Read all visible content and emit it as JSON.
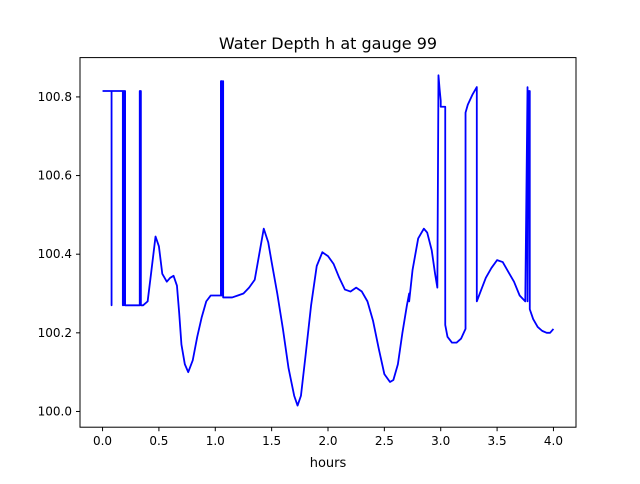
{
  "chart_data": {
    "type": "line",
    "title": "Water Depth h at gauge 99",
    "xlabel": "hours",
    "ylabel": "",
    "xlim": [
      -0.2,
      4.2
    ],
    "ylim": [
      99.96,
      100.9
    ],
    "xticks": [
      0.0,
      0.5,
      1.0,
      1.5,
      2.0,
      2.5,
      3.0,
      3.5,
      4.0
    ],
    "xtick_labels": [
      "0.0",
      "0.5",
      "1.0",
      "1.5",
      "2.0",
      "2.5",
      "3.0",
      "3.5",
      "4.0"
    ],
    "yticks": [
      100.0,
      100.2,
      100.4,
      100.6,
      100.8
    ],
    "ytick_labels": [
      "100.0",
      "100.2",
      "100.4",
      "100.6",
      "100.8"
    ],
    "grid": false,
    "legend": "none",
    "colors": {
      "line": "#0000ff",
      "frame": "#000000",
      "background": "#ffffff"
    },
    "series": [
      {
        "x": [
          0.0,
          0.06,
          0.08,
          0.08,
          0.08,
          0.08,
          0.08,
          0.08,
          0.1,
          0.16,
          0.18,
          0.18,
          0.18,
          0.19,
          0.19,
          0.19,
          0.2,
          0.2,
          0.2,
          0.22,
          0.3,
          0.33,
          0.33,
          0.34,
          0.34,
          0.36,
          0.4,
          0.43,
          0.47,
          0.5,
          0.53,
          0.57,
          0.6,
          0.63,
          0.66,
          0.68,
          0.7,
          0.73,
          0.76,
          0.8,
          0.84,
          0.88,
          0.92,
          0.96,
          1.0,
          1.03,
          1.05,
          1.05,
          1.06,
          1.06,
          1.07,
          1.07,
          1.1,
          1.15,
          1.2,
          1.25,
          1.3,
          1.35,
          1.39,
          1.43,
          1.47,
          1.5,
          1.55,
          1.6,
          1.65,
          1.7,
          1.73,
          1.76,
          1.8,
          1.85,
          1.9,
          1.95,
          2.0,
          2.05,
          2.1,
          2.15,
          2.2,
          2.25,
          2.3,
          2.35,
          2.4,
          2.45,
          2.5,
          2.55,
          2.58,
          2.62,
          2.66,
          2.7,
          2.72,
          2.72,
          2.75,
          2.8,
          2.85,
          2.88,
          2.92,
          2.95,
          2.97,
          2.98,
          2.99,
          3.0,
          3.0,
          3.02,
          3.04,
          3.04,
          3.06,
          3.1,
          3.14,
          3.18,
          3.22,
          3.22,
          3.24,
          3.28,
          3.32,
          3.32,
          3.36,
          3.4,
          3.45,
          3.5,
          3.55,
          3.6,
          3.65,
          3.7,
          3.75,
          3.77,
          3.77,
          3.78,
          3.79,
          3.79,
          3.82,
          3.86,
          3.9,
          3.94,
          3.97,
          4.0
        ],
        "y": [
          100.815,
          100.815,
          100.815,
          100.27,
          100.815,
          100.815,
          100.27,
          100.815,
          100.815,
          100.815,
          100.815,
          100.27,
          100.815,
          100.815,
          100.27,
          100.815,
          100.815,
          100.27,
          100.27,
          100.27,
          100.27,
          100.27,
          100.815,
          100.815,
          100.27,
          100.27,
          100.28,
          100.35,
          100.445,
          100.42,
          100.35,
          100.33,
          100.34,
          100.345,
          100.32,
          100.25,
          100.17,
          100.12,
          100.1,
          100.13,
          100.19,
          100.24,
          100.28,
          100.295,
          100.295,
          100.295,
          100.295,
          100.84,
          100.84,
          100.295,
          100.84,
          100.29,
          100.29,
          100.29,
          100.295,
          100.3,
          100.315,
          100.335,
          100.4,
          100.465,
          100.43,
          100.38,
          100.3,
          100.21,
          100.11,
          100.04,
          100.015,
          100.04,
          100.14,
          100.27,
          100.37,
          100.405,
          100.395,
          100.375,
          100.34,
          100.31,
          100.305,
          100.315,
          100.305,
          100.28,
          100.23,
          100.16,
          100.095,
          100.075,
          100.08,
          100.12,
          100.2,
          100.27,
          100.3,
          100.28,
          100.36,
          100.44,
          100.465,
          100.455,
          100.41,
          100.35,
          100.315,
          100.855,
          100.82,
          100.79,
          100.775,
          100.775,
          100.775,
          100.22,
          100.19,
          100.175,
          100.175,
          100.185,
          100.21,
          100.76,
          100.78,
          100.805,
          100.825,
          100.28,
          100.31,
          100.34,
          100.365,
          100.385,
          100.38,
          100.355,
          100.33,
          100.295,
          100.28,
          100.825,
          100.28,
          100.815,
          100.815,
          100.26,
          100.235,
          100.215,
          100.205,
          100.2,
          100.2,
          100.21
        ]
      }
    ]
  }
}
